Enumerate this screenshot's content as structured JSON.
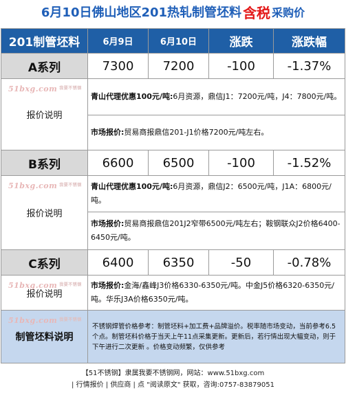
{
  "title": {
    "main": "6月10日佛山地区201热轧制管坯料",
    "highlight": "含税",
    "tail": "采购价"
  },
  "header": {
    "col0": "201制管坯料",
    "col1": "6月9日",
    "col2": "6月10日",
    "col3": "涨跌",
    "col4": "涨跌幅"
  },
  "watermark": {
    "text": "51bxg.com",
    "sub": "我要不锈钢"
  },
  "series": [
    {
      "name": "A系列",
      "jun9": "7300",
      "jun10": "7200",
      "change": "-100",
      "pct": "-1.37%",
      "label": "报价说明",
      "agent_title": "青山代理优惠100元/吨:",
      "agent_text": "6月资源，鼎信J1：7200元/吨，J4：7800元/吨。",
      "market_title": "市场报价:",
      "market_text": "贸易商报鼎信201-J1价格7200元/吨左右。"
    },
    {
      "name": "B系列",
      "jun9": "6600",
      "jun10": "6500",
      "change": "-100",
      "pct": "-1.52%",
      "label": "报价说明",
      "agent_title": "青山代理优惠100元/吨:",
      "agent_text": "6月资源，鼎信J2：6500元/吨，J1A：6800元/吨。",
      "market_title": "市场报价:",
      "market_text": "贸易商报鼎信201J2窄带6500元/吨左右；鞍钢联众J2价格6400-6450元/吨。"
    },
    {
      "name": "C系列",
      "jun9": "6400",
      "jun10": "6350",
      "change": "-50",
      "pct": "-0.78%",
      "label": "报价说明",
      "market_title": "市场报价:",
      "market_text": "金海/鑫峰J3价格6330-6350元/吨。中金J5价格6320-6350元/吨。华乐J3A价格6350元/吨。"
    }
  ],
  "footer": {
    "label": "制管坯料说明",
    "text": "不锈钢焊管价格参考：制管坯料+加工费+品牌溢价。税率随市场变动，当前参考6.5个点。制管坯料价格于当天上午11点采集更新。更新后，若行情出现大幅变动，则于下午进行二次更新 。价格变动频繁，仅供参考"
  },
  "bottom": {
    "line1": "【51不锈钢】隶属我要不锈钢网，网站：www.51bxg.com",
    "line2": "| 行情报价 | 供应商 | 点 \"阅读原文\" 获取，咨询:0757-83879051"
  }
}
